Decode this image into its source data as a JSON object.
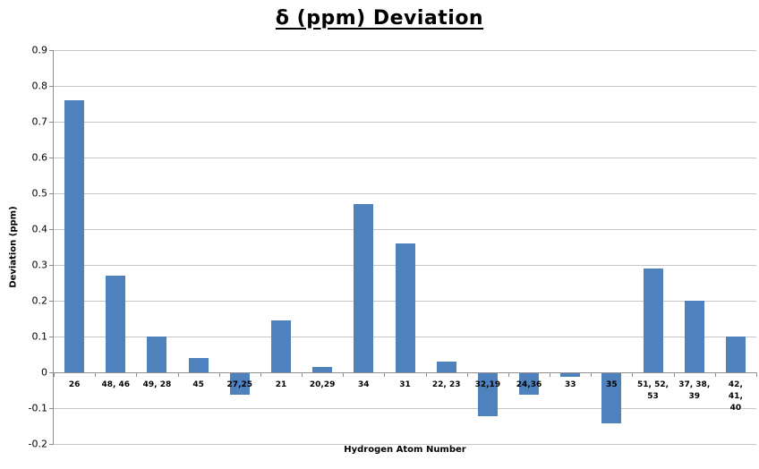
{
  "title": "δ (ppm) Deviation",
  "chart_data": {
    "type": "bar",
    "title": "δ (ppm) Deviation",
    "xlabel": "Hydrogen Atom Number",
    "ylabel": "Deviation (ppm)",
    "ylim": [
      -0.2,
      0.9
    ],
    "ytick_step": 0.1,
    "ytick_labels": [
      "0.9",
      "0.8",
      "0.7",
      "0.6",
      "0.5",
      "0.4",
      "0.3",
      "0.2",
      "0.1",
      "0",
      "-0.1",
      "-0.2"
    ],
    "grid": true,
    "legend_position": "none",
    "bar_color": "#4f81bd",
    "categories": [
      "26",
      "48, 46",
      "49, 28",
      "45",
      "27,25",
      "21",
      "20,29",
      "34",
      "31",
      "22, 23",
      "32,19",
      "24,36",
      "33",
      "35",
      "51, 52,\n53",
      "37, 38,\n39",
      "42, 41,\n40"
    ],
    "values": [
      0.76,
      0.27,
      0.1,
      0.04,
      -0.06,
      0.145,
      0.015,
      0.47,
      0.36,
      0.03,
      -0.12,
      -0.06,
      -0.01,
      -0.14,
      0.29,
      0.2,
      0.1
    ]
  }
}
